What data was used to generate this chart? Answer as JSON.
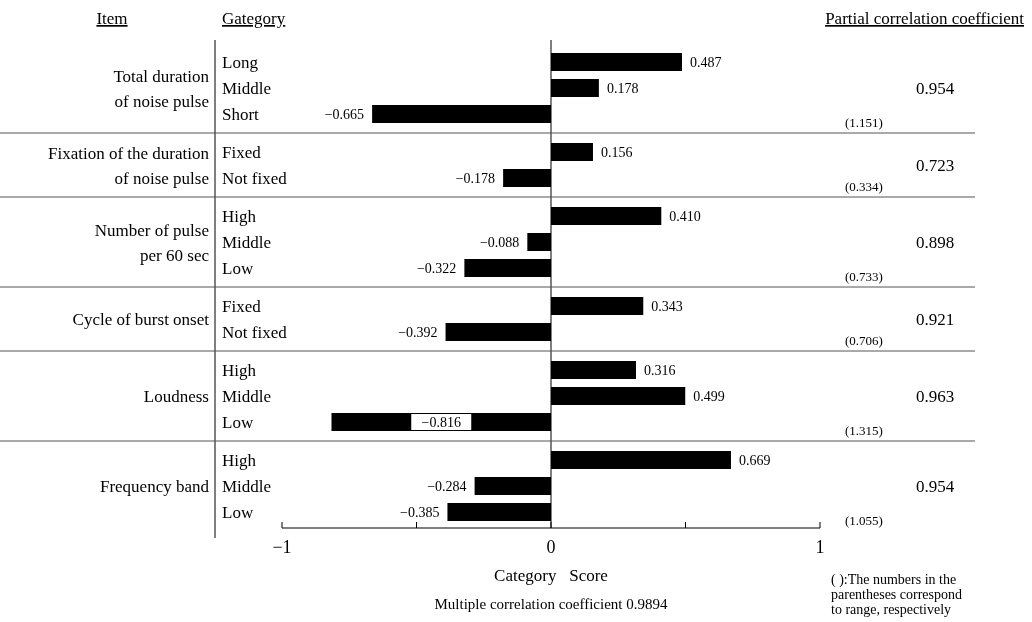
{
  "chart_data": {
    "type": "bar",
    "orientation": "horizontal",
    "categories": [
      "Long",
      "Middle",
      "Short",
      "Fixed",
      "Not fixed",
      "High",
      "Middle",
      "Low",
      "Fixed",
      "Not fixed",
      "High",
      "Middle",
      "Low",
      "High",
      "Middle",
      "Low"
    ],
    "values": [
      0.487,
      0.178,
      -0.665,
      0.156,
      -0.178,
      0.41,
      -0.088,
      -0.322,
      0.343,
      -0.392,
      0.316,
      0.499,
      -0.816,
      0.669,
      -0.284,
      -0.385
    ],
    "value_labels": [
      "0.487",
      "0.178",
      "−0.665",
      "0.156",
      "−0.178",
      "0.410",
      "−0.088",
      "−0.322",
      "0.343",
      "−0.392",
      "0.316",
      "0.499",
      "−0.816",
      "0.669",
      "−0.284",
      "−0.385"
    ],
    "color": "#000000",
    "xlim": [
      -1,
      1
    ],
    "xticks": [
      {
        "value": -1,
        "label": "−1"
      },
      {
        "value": -0.5,
        "label": null
      },
      0,
      {
        "value": 0.5,
        "label": null
      },
      1
    ],
    "xlabel": "Category   Score",
    "annotations": [
      "Item",
      "Gategory",
      "Partial correlation coefficient",
      "Total duration\nof noise pulse",
      "0.954",
      "(1.151)",
      "Fixation of the duration\nof noise pulse",
      "0.723",
      "(0.334)",
      "Number of pulse\nper 60 sec",
      "0.898",
      "(0.733)",
      "Cycle of burst onset",
      "0.921",
      "(0.706)",
      "Loudness",
      "0.963",
      "(1.315)",
      "Frequency band",
      "0.954",
      "(1.055)",
      "Multiple correlation coefficient 0.9894",
      "( ):The numbers in the\nparentheses correspond\nto range, respectively"
    ]
  }
}
